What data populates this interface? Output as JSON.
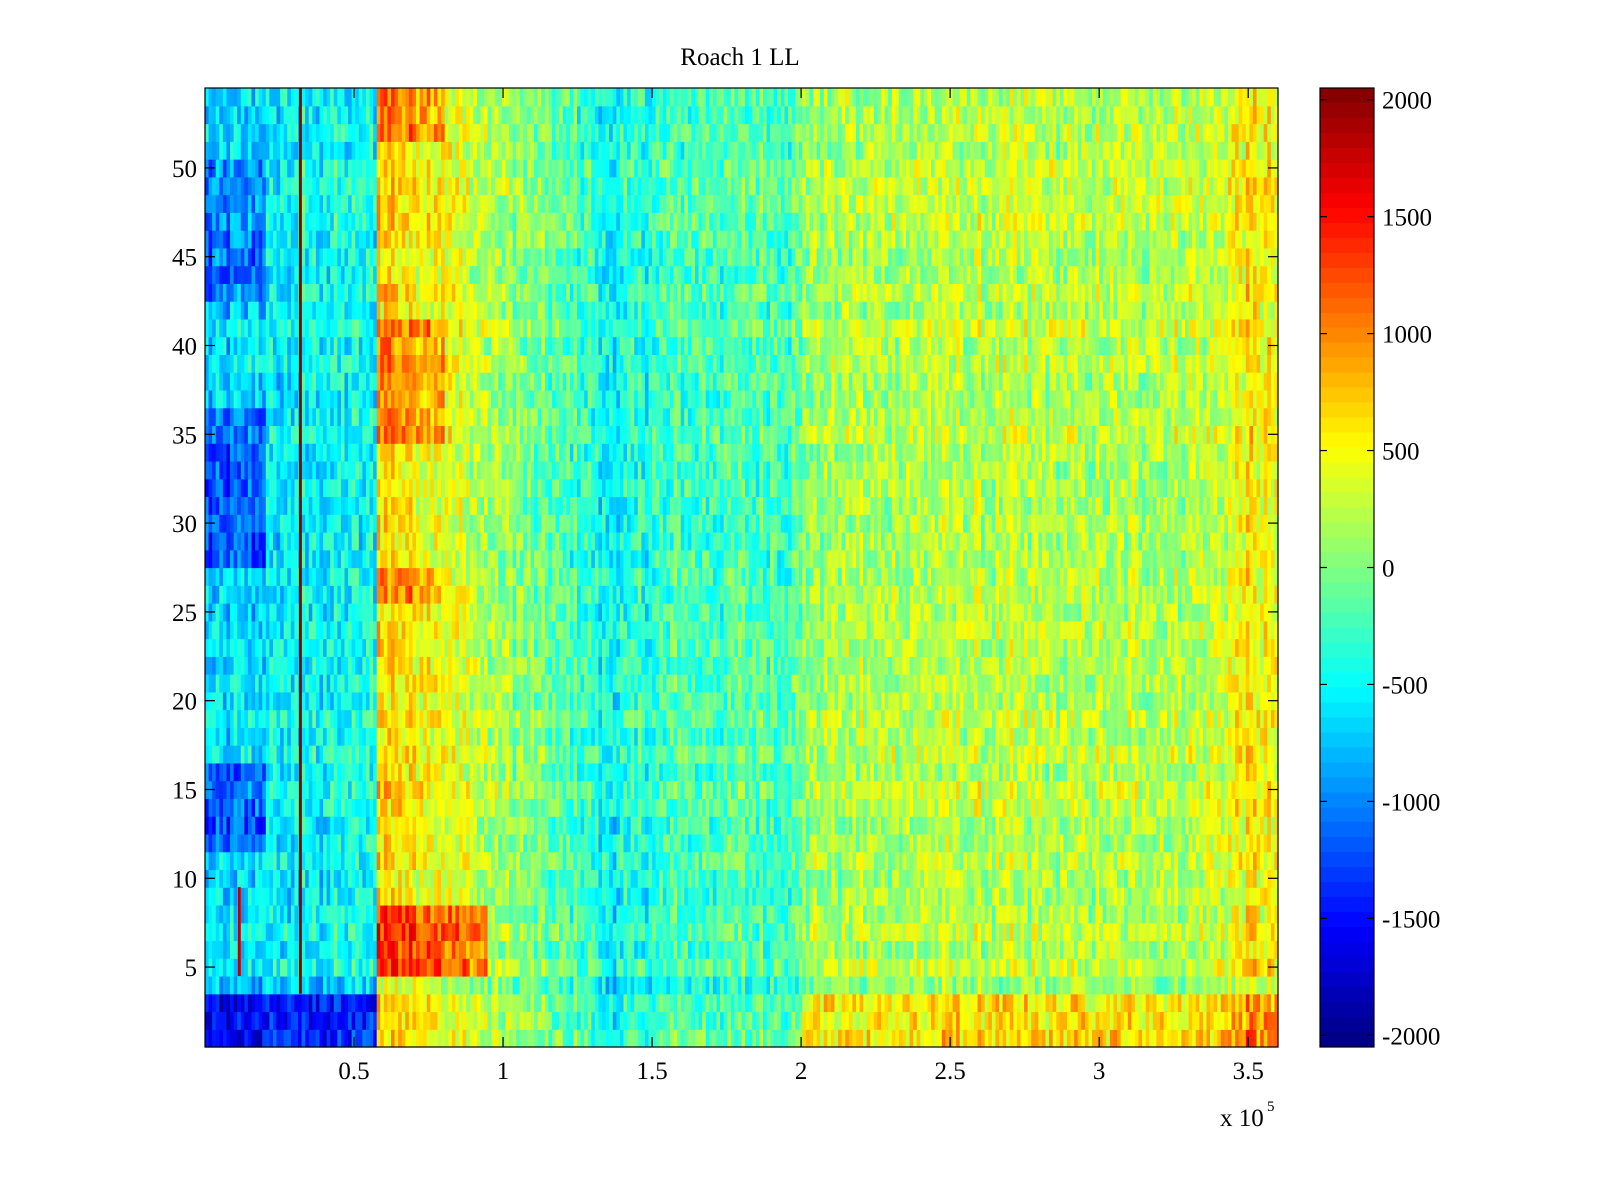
{
  "chart_data": {
    "type": "heatmap",
    "title": "Roach 1 LL",
    "xlabel": "",
    "ylabel": "",
    "x_exponent_label": {
      "base": "x 10",
      "exponent": "5"
    },
    "xlim": [
      0,
      3.6
    ],
    "ylim": [
      0.5,
      54.5
    ],
    "x_ticks": [
      0.5,
      1,
      1.5,
      2,
      2.5,
      3,
      3.5
    ],
    "x_tick_labels": [
      "0.5",
      "1",
      "1.5",
      "2",
      "2.5",
      "3",
      "3.5"
    ],
    "y_ticks": [
      5,
      10,
      15,
      20,
      25,
      30,
      35,
      40,
      45,
      50
    ],
    "y_tick_labels": [
      "5",
      "10",
      "15",
      "20",
      "25",
      "30",
      "35",
      "40",
      "45",
      "50"
    ],
    "colorbar": {
      "colormap": "jet",
      "range": [
        -2050,
        2050
      ],
      "ticks": [
        -2000,
        -1500,
        -1000,
        -500,
        0,
        500,
        1000,
        1500,
        2000
      ],
      "tick_labels": [
        "-2000",
        "-1500",
        "-1000",
        "-500",
        "0",
        "500",
        "1000",
        "1500",
        "2000"
      ]
    },
    "rows": 54,
    "column_profile_x": [
      0.0,
      0.2,
      0.31,
      0.57,
      0.58,
      0.8,
      0.95,
      1.3,
      1.34,
      1.6,
      2.0,
      2.01,
      2.5,
      3.0,
      3.4,
      3.5,
      3.6
    ],
    "column_profile_value": [
      -700,
      -600,
      -500,
      -450,
      700,
      500,
      200,
      -300,
      -500,
      -200,
      -150,
      150,
      250,
      200,
      300,
      600,
      450
    ],
    "row_offsets": [
      {
        "rows": [
          1,
          2,
          3
        ],
        "x_range": [
          0,
          0.58
        ],
        "offset": -1000
      },
      {
        "rows": [
          1,
          2,
          3
        ],
        "x_range": [
          2.0,
          3.6
        ],
        "offset": 350
      },
      {
        "rows": [
          4
        ],
        "x_range": [
          0,
          3.6
        ],
        "offset": -150
      },
      {
        "rows": [
          5,
          6,
          7,
          8
        ],
        "x_range": [
          0.58,
          0.95
        ],
        "offset": 700
      },
      {
        "rows": [
          12,
          13,
          14,
          15,
          16
        ],
        "x_range": [
          0,
          0.2
        ],
        "offset": -500
      },
      {
        "rows": [
          28,
          29,
          30,
          31,
          32,
          33,
          34,
          35,
          36
        ],
        "x_range": [
          0,
          0.2
        ],
        "offset": -500
      },
      {
        "rows": [
          43,
          44,
          45,
          46,
          47,
          48,
          49,
          50
        ],
        "x_range": [
          0,
          0.2
        ],
        "offset": -400
      },
      {
        "rows": [
          26,
          27,
          35,
          36,
          37,
          38,
          39,
          40,
          41,
          52,
          53,
          54
        ],
        "x_range": [
          0.58,
          0.8
        ],
        "offset": 400
      }
    ],
    "vertical_lines": [
      {
        "x": 0.32,
        "value": 2000
      },
      {
        "x": 0.115,
        "rows_from": 5,
        "rows_to": 9,
        "value": 1800
      }
    ],
    "noise_amplitude": 350
  }
}
